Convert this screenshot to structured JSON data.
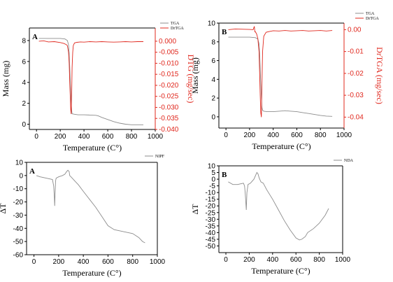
{
  "colors": {
    "tga": "#8c8c8c",
    "dtg": "#e0281e",
    "dta": "#8c8c8c",
    "axis": "#000000"
  },
  "chart_data": [
    {
      "type": "line",
      "panel_label": "A",
      "xlabel": "Temperature (C°)",
      "ylabel": "Mass (mg)",
      "ylabel2": "DTG (mg/sec)",
      "xlim": [
        -60,
        1000
      ],
      "ylim": [
        -0.5,
        9.2
      ],
      "ylim2": [
        -0.04,
        0.006
      ],
      "x_ticks": [
        0,
        200,
        400,
        600,
        800,
        1000
      ],
      "x_tick_labels": [
        "0",
        "200",
        "400",
        "600",
        "800",
        "1000"
      ],
      "y_ticks": [
        0,
        2,
        4,
        6,
        8
      ],
      "y_tick_labels": [
        "0",
        "2",
        "4",
        "6",
        "8"
      ],
      "y2_ticks": [
        0.0,
        -0.005,
        -0.01,
        -0.015,
        -0.02,
        -0.025,
        -0.03,
        -0.035,
        -0.04
      ],
      "y2_tick_labels": [
        "0.000",
        "-0.005",
        "-0.010",
        "-0.015",
        "-0.020",
        "-0.025",
        "-0.030",
        "-0.035",
        "-0.040"
      ],
      "grid": false,
      "legend_position": "top-right",
      "series": [
        {
          "name": "TGA",
          "axis": "left",
          "color": "#8c8c8c",
          "x": [
            20,
            100,
            200,
            240,
            260,
            270,
            275,
            280,
            285,
            290,
            296,
            300,
            320,
            350,
            400,
            450,
            500,
            520,
            550,
            600,
            650,
            700,
            750,
            800,
            850,
            900
          ],
          "y": [
            8.2,
            8.2,
            8.2,
            8.15,
            8.0,
            7.6,
            6.8,
            5.5,
            4.0,
            2.5,
            1.3,
            1.0,
            0.95,
            0.9,
            0.9,
            0.88,
            0.85,
            0.8,
            0.65,
            0.45,
            0.25,
            0.1,
            0.0,
            -0.05,
            -0.05,
            -0.05
          ]
        },
        {
          "name": "DrTGA",
          "axis": "right",
          "color": "#e0281e",
          "x": [
            20,
            60,
            100,
            150,
            200,
            230,
            250,
            260,
            270,
            275,
            280,
            285,
            288,
            292,
            296,
            300,
            305,
            310,
            320,
            340,
            370,
            400,
            450,
            500,
            550,
            600,
            650,
            700,
            750,
            800,
            850,
            900
          ],
          "y": [
            0.0,
            0.0002,
            -0.0003,
            -0.0002,
            -0.0006,
            -0.001,
            -0.0015,
            -0.002,
            -0.005,
            -0.01,
            -0.018,
            -0.026,
            -0.031,
            -0.033,
            -0.024,
            -0.012,
            -0.005,
            -0.002,
            -0.0008,
            -0.0005,
            -0.0003,
            -0.0004,
            -0.0002,
            -0.0003,
            -0.0002,
            -0.0003,
            -0.0004,
            -0.0003,
            -0.0002,
            -0.0003,
            -0.0002,
            -0.0002
          ]
        }
      ]
    },
    {
      "type": "line",
      "panel_label": "B",
      "xlabel": "Temperature (C°)",
      "ylabel": "Mass (mg)",
      "ylabel2": "DrTGA (mg/sec)",
      "xlim": [
        -60,
        1000
      ],
      "ylim": [
        -1.2,
        10
      ],
      "ylim2": [
        -0.045,
        0.003
      ],
      "x_ticks": [
        0,
        200,
        400,
        600,
        800,
        1000
      ],
      "x_tick_labels": [
        "0",
        "200",
        "400",
        "600",
        "800",
        "1000"
      ],
      "y_ticks": [
        0,
        2,
        4,
        6,
        8,
        10
      ],
      "y_tick_labels": [
        "0",
        "2",
        "4",
        "6",
        "8",
        "10"
      ],
      "y2_ticks": [
        0.0,
        -0.01,
        -0.02,
        -0.03,
        -0.04
      ],
      "y2_tick_labels": [
        "0.00",
        "-0.01",
        "-0.02",
        "-0.03",
        "-0.04"
      ],
      "grid": false,
      "legend_position": "top-right",
      "series": [
        {
          "name": "TGA",
          "axis": "left",
          "color": "#8c8c8c",
          "x": [
            20,
            100,
            200,
            250,
            270,
            280,
            285,
            290,
            295,
            300,
            305,
            310,
            320,
            350,
            400,
            450,
            500,
            550,
            600,
            650,
            700,
            750,
            800,
            850,
            900
          ],
          "y": [
            8.5,
            8.5,
            8.5,
            8.45,
            8.3,
            7.8,
            6.8,
            5.2,
            3.5,
            2.0,
            1.0,
            0.7,
            0.6,
            0.55,
            0.55,
            0.6,
            0.65,
            0.6,
            0.55,
            0.45,
            0.35,
            0.25,
            0.15,
            0.08,
            0.05
          ]
        },
        {
          "name": "DrTGA",
          "axis": "right",
          "color": "#e0281e",
          "x": [
            20,
            80,
            150,
            200,
            230,
            240,
            245,
            250,
            260,
            270,
            280,
            285,
            290,
            295,
            300,
            305,
            310,
            320,
            340,
            370,
            400,
            450,
            500,
            550,
            600,
            650,
            700,
            750,
            800,
            850,
            900
          ],
          "y": [
            0.0,
            0.0003,
            0.0002,
            0.0001,
            0.0,
            0.0015,
            -0.001,
            -0.001,
            -0.002,
            -0.004,
            -0.01,
            -0.02,
            -0.03,
            -0.038,
            -0.04,
            -0.025,
            -0.01,
            -0.003,
            -0.0012,
            -0.0008,
            -0.0005,
            -0.0006,
            -0.0004,
            -0.0006,
            -0.0005,
            -0.0004,
            -0.0006,
            -0.0005,
            -0.0004,
            -0.0006,
            -0.0004
          ]
        }
      ]
    },
    {
      "type": "line",
      "panel_label": "A",
      "xlabel": "Temperature (C°)",
      "ylabel": "ΔT",
      "xlim": [
        -60,
        1000
      ],
      "ylim": [
        -60,
        10
      ],
      "x_ticks": [
        0,
        200,
        400,
        600,
        800,
        1000
      ],
      "x_tick_labels": [
        "0",
        "200",
        "400",
        "600",
        "800",
        "1000"
      ],
      "y_ticks": [
        10,
        0,
        -10,
        -20,
        -30,
        -40,
        -50,
        -60
      ],
      "y_tick_labels": [
        "10",
        "0",
        "-10",
        "-20",
        "-30",
        "-40",
        "-50",
        "-60"
      ],
      "grid": false,
      "legend_position": "top-right",
      "series": [
        {
          "name": "NIPF",
          "axis": "left",
          "color": "#8c8c8c",
          "x": [
            20,
            50,
            100,
            150,
            160,
            165,
            168,
            172,
            175,
            180,
            200,
            230,
            250,
            265,
            275,
            285,
            290,
            300,
            330,
            360,
            400,
            450,
            500,
            550,
            600,
            650,
            700,
            750,
            800,
            850,
            880,
            900
          ],
          "y": [
            0,
            -1,
            -2,
            -3,
            -8,
            -16,
            -23,
            -12,
            -4,
            -2,
            -1,
            0,
            1,
            3,
            4,
            3,
            0,
            -1,
            -4,
            -7,
            -12,
            -18,
            -24,
            -31,
            -38,
            -41,
            -42,
            -43,
            -44,
            -47,
            -50,
            -51
          ]
        }
      ]
    },
    {
      "type": "line",
      "panel_label": "B",
      "xlabel": "Temperature (C°)",
      "ylabel": "ΔT",
      "xlim": [
        -60,
        1000
      ],
      "ylim": [
        -55,
        10
      ],
      "x_ticks": [
        0,
        200,
        400,
        600,
        800,
        1000
      ],
      "x_tick_labels": [
        "0",
        "200",
        "400",
        "600",
        "800",
        "1000"
      ],
      "y_ticks": [
        10,
        5,
        0,
        -5,
        -10,
        -15,
        -20,
        -25,
        -30,
        -35,
        -40,
        -45,
        -50
      ],
      "y_tick_labels": [
        "10",
        "5",
        "0",
        "-5",
        "-10",
        "-15",
        "-20",
        "-25",
        "-30",
        "-35",
        "-40",
        "-45",
        "-50"
      ],
      "grid": false,
      "legend_position": "top-right",
      "series": [
        {
          "name": "NDA",
          "axis": "left",
          "color": "#8c8c8c",
          "x": [
            20,
            60,
            100,
            150,
            160,
            165,
            170,
            175,
            180,
            190,
            210,
            240,
            255,
            265,
            275,
            285,
            300,
            320,
            350,
            400,
            450,
            500,
            550,
            600,
            630,
            650,
            680,
            700,
            750,
            800,
            850,
            880
          ],
          "y": [
            -2,
            -4,
            -4,
            -3,
            -5,
            -10,
            -16,
            -23,
            -10,
            -4,
            -3,
            0,
            3,
            5,
            4,
            1,
            -2,
            -3,
            -8,
            -15,
            -23,
            -31,
            -38,
            -44,
            -45.5,
            -45,
            -43,
            -40,
            -37,
            -33,
            -27,
            -22
          ]
        }
      ]
    }
  ]
}
